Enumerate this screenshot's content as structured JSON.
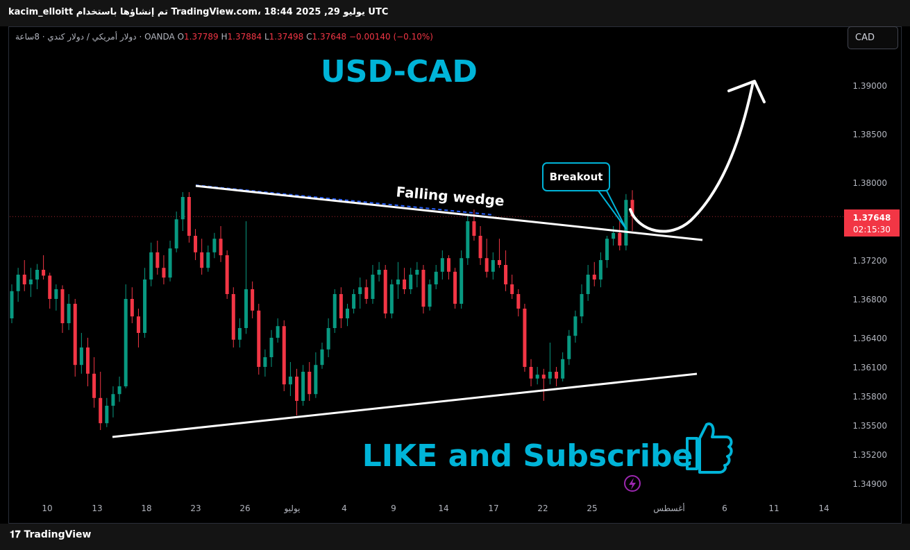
{
  "header": {
    "text": "kacim_elloitt تم إنشاؤها باستخدام TradingView.com، 18:44 2025 ,29 يوليو UTC"
  },
  "legend": {
    "symbol": "دولار أمريكي / دولار كندي · 8ساعة · OANDA",
    "o_label": "O",
    "o_value": "1.37789",
    "h_label": "H",
    "h_value": "1.37884",
    "l_label": "L",
    "l_value": "1.37498",
    "c_label": "C",
    "c_value": "1.37648",
    "change": "−0.00140 (−0.10%)"
  },
  "currency_button": "CAD",
  "footer": {
    "logo": "TradingView"
  },
  "colors": {
    "up": "#089981",
    "down": "#f23645",
    "annotation": "#00b4d8",
    "line": "#ffffff"
  },
  "chart_data": {
    "type": "candlestick",
    "title": "USD-CAD",
    "y_ticks": [
      "1.39000",
      "1.38500",
      "1.38000",
      "1.37200",
      "1.36800",
      "1.36400",
      "1.36100",
      "1.35800",
      "1.35500",
      "1.35200",
      "1.34900"
    ],
    "x_ticks": [
      "10",
      "13",
      "18",
      "23",
      "26",
      "يوليو",
      "4",
      "9",
      "14",
      "17",
      "22",
      "25",
      "أغسطس",
      "6",
      "11",
      "14"
    ],
    "current_price": "1.37648",
    "countdown": "02:15:30",
    "annotations": {
      "pattern": "Falling wedge",
      "callout": "Breakout",
      "promo": "LIKE and Subscribe"
    },
    "candles": [
      {
        "o": 1.366,
        "h": 1.3695,
        "l": 1.3655,
        "c": 1.3688
      },
      {
        "o": 1.3688,
        "h": 1.3712,
        "l": 1.3677,
        "c": 1.3705
      },
      {
        "o": 1.3705,
        "h": 1.372,
        "l": 1.3688,
        "c": 1.3695
      },
      {
        "o": 1.3695,
        "h": 1.3712,
        "l": 1.3682,
        "c": 1.37
      },
      {
        "o": 1.37,
        "h": 1.3716,
        "l": 1.369,
        "c": 1.371
      },
      {
        "o": 1.371,
        "h": 1.3725,
        "l": 1.37,
        "c": 1.3704
      },
      {
        "o": 1.3704,
        "h": 1.3707,
        "l": 1.367,
        "c": 1.368
      },
      {
        "o": 1.368,
        "h": 1.3695,
        "l": 1.3668,
        "c": 1.369
      },
      {
        "o": 1.369,
        "h": 1.3694,
        "l": 1.3645,
        "c": 1.3655
      },
      {
        "o": 1.3655,
        "h": 1.3685,
        "l": 1.3648,
        "c": 1.3675
      },
      {
        "o": 1.3675,
        "h": 1.368,
        "l": 1.36,
        "c": 1.3612
      },
      {
        "o": 1.3612,
        "h": 1.3645,
        "l": 1.3603,
        "c": 1.363
      },
      {
        "o": 1.363,
        "h": 1.364,
        "l": 1.359,
        "c": 1.3603
      },
      {
        "o": 1.3603,
        "h": 1.362,
        "l": 1.3568,
        "c": 1.3578
      },
      {
        "o": 1.3578,
        "h": 1.3605,
        "l": 1.3545,
        "c": 1.3552
      },
      {
        "o": 1.3552,
        "h": 1.3578,
        "l": 1.3548,
        "c": 1.357
      },
      {
        "o": 1.357,
        "h": 1.359,
        "l": 1.3558,
        "c": 1.3582
      },
      {
        "o": 1.3582,
        "h": 1.36,
        "l": 1.3574,
        "c": 1.359
      },
      {
        "o": 1.359,
        "h": 1.3695,
        "l": 1.3588,
        "c": 1.368
      },
      {
        "o": 1.368,
        "h": 1.3692,
        "l": 1.3655,
        "c": 1.3662
      },
      {
        "o": 1.3662,
        "h": 1.367,
        "l": 1.363,
        "c": 1.3645
      },
      {
        "o": 1.3645,
        "h": 1.3712,
        "l": 1.364,
        "c": 1.37
      },
      {
        "o": 1.37,
        "h": 1.3738,
        "l": 1.3693,
        "c": 1.3728
      },
      {
        "o": 1.3728,
        "h": 1.374,
        "l": 1.3705,
        "c": 1.3712
      },
      {
        "o": 1.3712,
        "h": 1.3725,
        "l": 1.3695,
        "c": 1.3702
      },
      {
        "o": 1.3702,
        "h": 1.374,
        "l": 1.3698,
        "c": 1.3732
      },
      {
        "o": 1.3732,
        "h": 1.377,
        "l": 1.3728,
        "c": 1.3762
      },
      {
        "o": 1.3762,
        "h": 1.379,
        "l": 1.375,
        "c": 1.3785
      },
      {
        "o": 1.3785,
        "h": 1.379,
        "l": 1.3738,
        "c": 1.3745
      },
      {
        "o": 1.3745,
        "h": 1.3752,
        "l": 1.372,
        "c": 1.3728
      },
      {
        "o": 1.3728,
        "h": 1.3742,
        "l": 1.3705,
        "c": 1.3712
      },
      {
        "o": 1.3712,
        "h": 1.3735,
        "l": 1.3708,
        "c": 1.3728
      },
      {
        "o": 1.3728,
        "h": 1.3748,
        "l": 1.3722,
        "c": 1.3742
      },
      {
        "o": 1.3742,
        "h": 1.3755,
        "l": 1.3718,
        "c": 1.3725
      },
      {
        "o": 1.3725,
        "h": 1.373,
        "l": 1.368,
        "c": 1.3685
      },
      {
        "o": 1.3685,
        "h": 1.3692,
        "l": 1.363,
        "c": 1.3638
      },
      {
        "o": 1.3638,
        "h": 1.366,
        "l": 1.363,
        "c": 1.365
      },
      {
        "o": 1.365,
        "h": 1.376,
        "l": 1.3644,
        "c": 1.369
      },
      {
        "o": 1.369,
        "h": 1.3698,
        "l": 1.366,
        "c": 1.3668
      },
      {
        "o": 1.3668,
        "h": 1.3675,
        "l": 1.3602,
        "c": 1.361
      },
      {
        "o": 1.361,
        "h": 1.3628,
        "l": 1.36,
        "c": 1.362
      },
      {
        "o": 1.362,
        "h": 1.3648,
        "l": 1.361,
        "c": 1.364
      },
      {
        "o": 1.364,
        "h": 1.366,
        "l": 1.3635,
        "c": 1.3652
      },
      {
        "o": 1.3652,
        "h": 1.3658,
        "l": 1.3585,
        "c": 1.3592
      },
      {
        "o": 1.3592,
        "h": 1.3615,
        "l": 1.358,
        "c": 1.36
      },
      {
        "o": 1.36,
        "h": 1.3608,
        "l": 1.356,
        "c": 1.3575
      },
      {
        "o": 1.3575,
        "h": 1.3612,
        "l": 1.357,
        "c": 1.3605
      },
      {
        "o": 1.3605,
        "h": 1.3615,
        "l": 1.3575,
        "c": 1.3582
      },
      {
        "o": 1.3582,
        "h": 1.3625,
        "l": 1.3578,
        "c": 1.3612
      },
      {
        "o": 1.3612,
        "h": 1.3635,
        "l": 1.3608,
        "c": 1.3628
      },
      {
        "o": 1.3628,
        "h": 1.366,
        "l": 1.362,
        "c": 1.365
      },
      {
        "o": 1.365,
        "h": 1.369,
        "l": 1.3645,
        "c": 1.3685
      },
      {
        "o": 1.3685,
        "h": 1.3692,
        "l": 1.365,
        "c": 1.366
      },
      {
        "o": 1.366,
        "h": 1.3675,
        "l": 1.3652,
        "c": 1.367
      },
      {
        "o": 1.367,
        "h": 1.369,
        "l": 1.3665,
        "c": 1.3685
      },
      {
        "o": 1.3685,
        "h": 1.3702,
        "l": 1.367,
        "c": 1.3692
      },
      {
        "o": 1.3692,
        "h": 1.37,
        "l": 1.3675,
        "c": 1.368
      },
      {
        "o": 1.368,
        "h": 1.3715,
        "l": 1.3675,
        "c": 1.3705
      },
      {
        "o": 1.3705,
        "h": 1.3718,
        "l": 1.3698,
        "c": 1.371
      },
      {
        "o": 1.371,
        "h": 1.3715,
        "l": 1.366,
        "c": 1.3665
      },
      {
        "o": 1.3665,
        "h": 1.37,
        "l": 1.366,
        "c": 1.3695
      },
      {
        "o": 1.3695,
        "h": 1.3718,
        "l": 1.368,
        "c": 1.37
      },
      {
        "o": 1.37,
        "h": 1.3712,
        "l": 1.3685,
        "c": 1.369
      },
      {
        "o": 1.369,
        "h": 1.3712,
        "l": 1.3685,
        "c": 1.3705
      },
      {
        "o": 1.3705,
        "h": 1.3718,
        "l": 1.3692,
        "c": 1.371
      },
      {
        "o": 1.371,
        "h": 1.3715,
        "l": 1.3665,
        "c": 1.3672
      },
      {
        "o": 1.3672,
        "h": 1.37,
        "l": 1.3668,
        "c": 1.3695
      },
      {
        "o": 1.3695,
        "h": 1.3715,
        "l": 1.369,
        "c": 1.3708
      },
      {
        "o": 1.3708,
        "h": 1.373,
        "l": 1.37,
        "c": 1.3722
      },
      {
        "o": 1.3722,
        "h": 1.3725,
        "l": 1.37,
        "c": 1.3708
      },
      {
        "o": 1.3708,
        "h": 1.3712,
        "l": 1.367,
        "c": 1.3675
      },
      {
        "o": 1.3675,
        "h": 1.373,
        "l": 1.367,
        "c": 1.3722
      },
      {
        "o": 1.3722,
        "h": 1.3768,
        "l": 1.3715,
        "c": 1.376
      },
      {
        "o": 1.376,
        "h": 1.3772,
        "l": 1.374,
        "c": 1.3745
      },
      {
        "o": 1.3745,
        "h": 1.3755,
        "l": 1.3715,
        "c": 1.3722
      },
      {
        "o": 1.3722,
        "h": 1.3742,
        "l": 1.3702,
        "c": 1.3708
      },
      {
        "o": 1.3708,
        "h": 1.3728,
        "l": 1.37,
        "c": 1.372
      },
      {
        "o": 1.372,
        "h": 1.3742,
        "l": 1.3712,
        "c": 1.3715
      },
      {
        "o": 1.3715,
        "h": 1.373,
        "l": 1.3688,
        "c": 1.3695
      },
      {
        "o": 1.3695,
        "h": 1.3705,
        "l": 1.368,
        "c": 1.3685
      },
      {
        "o": 1.3685,
        "h": 1.369,
        "l": 1.3662,
        "c": 1.367
      },
      {
        "o": 1.367,
        "h": 1.3675,
        "l": 1.3605,
        "c": 1.361
      },
      {
        "o": 1.361,
        "h": 1.3618,
        "l": 1.359,
        "c": 1.3598
      },
      {
        "o": 1.3598,
        "h": 1.361,
        "l": 1.3592,
        "c": 1.3602
      },
      {
        "o": 1.3602,
        "h": 1.3608,
        "l": 1.3575,
        "c": 1.3598
      },
      {
        "o": 1.3598,
        "h": 1.3635,
        "l": 1.3592,
        "c": 1.3605
      },
      {
        "o": 1.3605,
        "h": 1.361,
        "l": 1.359,
        "c": 1.3598
      },
      {
        "o": 1.3598,
        "h": 1.3625,
        "l": 1.3595,
        "c": 1.3618
      },
      {
        "o": 1.3618,
        "h": 1.3648,
        "l": 1.3612,
        "c": 1.3642
      },
      {
        "o": 1.3642,
        "h": 1.3668,
        "l": 1.3635,
        "c": 1.3662
      },
      {
        "o": 1.3662,
        "h": 1.3695,
        "l": 1.3655,
        "c": 1.3685
      },
      {
        "o": 1.3685,
        "h": 1.3715,
        "l": 1.3678,
        "c": 1.3705
      },
      {
        "o": 1.3705,
        "h": 1.3718,
        "l": 1.3693,
        "c": 1.37
      },
      {
        "o": 1.37,
        "h": 1.3728,
        "l": 1.3692,
        "c": 1.372
      },
      {
        "o": 1.372,
        "h": 1.3745,
        "l": 1.3712,
        "c": 1.3742
      },
      {
        "o": 1.3742,
        "h": 1.3755,
        "l": 1.3735,
        "c": 1.3748
      },
      {
        "o": 1.3748,
        "h": 1.376,
        "l": 1.373,
        "c": 1.3735
      },
      {
        "o": 1.3735,
        "h": 1.3788,
        "l": 1.373,
        "c": 1.3782
      },
      {
        "o": 1.3782,
        "h": 1.3792,
        "l": 1.375,
        "c": 1.3765
      }
    ]
  }
}
